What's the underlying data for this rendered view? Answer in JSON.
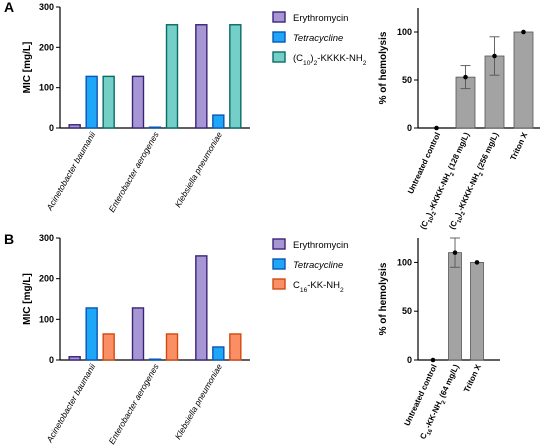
{
  "colors": {
    "erythromycin_fill": "#a796d4",
    "erythromycin_stroke": "#3b2378",
    "tetracycline_fill": "#1ea7f7",
    "tetracycline_stroke": "#0b55b8",
    "peptide_a_fill": "#73cfc8",
    "peptide_a_stroke": "#0a6b66",
    "peptide_b_fill": "#fa8f66",
    "peptide_b_stroke": "#d34a10",
    "hemolysis_bar": "#a3a3a3"
  },
  "chart_data": [
    {
      "panel": "A",
      "type": "bar",
      "title": "",
      "ylabel": "MIC [mg/L]",
      "xlabel": "",
      "ylim": [
        0,
        300
      ],
      "yticks": [
        0,
        100,
        200,
        300
      ],
      "categories": [
        "Acinetobacter baumanii",
        "Enterobacter aerogenes",
        "Klebsiella pneumoniae"
      ],
      "legend_position": "right",
      "series": [
        {
          "name": "Erythromycin",
          "values": [
            8,
            128,
            256
          ]
        },
        {
          "name": "Tetracycline",
          "values": [
            128,
            2,
            32
          ]
        },
        {
          "name": "(C10)2-KKKK-NH2",
          "values": [
            128,
            256,
            256
          ]
        }
      ]
    },
    {
      "panel": "A",
      "type": "bar",
      "title": "",
      "ylabel": "% of hemolysis",
      "xlabel": "",
      "ylim": [
        0,
        125
      ],
      "yticks": [
        0,
        50,
        100
      ],
      "categories": [
        "Untreated control",
        "(C10)2-KKKK-NH2 (128 mg/L)",
        "(C10)2-KKKK-NH2 (256 mg/L)",
        "Triton X"
      ],
      "values": [
        0,
        53,
        75,
        100
      ],
      "error_bars": [
        0,
        12,
        20,
        0
      ],
      "points": [
        0,
        53,
        75,
        100
      ]
    },
    {
      "panel": "B",
      "type": "bar",
      "title": "",
      "ylabel": "MIC [mg/L]",
      "xlabel": "",
      "ylim": [
        0,
        300
      ],
      "yticks": [
        0,
        100,
        200,
        300
      ],
      "categories": [
        "Acinetobacter baumanii",
        "Enterobacter aerogenes",
        "Klebsiella pneumoniae"
      ],
      "legend_position": "right",
      "series": [
        {
          "name": "Erythromycin",
          "values": [
            8,
            128,
            256
          ]
        },
        {
          "name": "Tetracycline",
          "values": [
            128,
            2,
            32
          ]
        },
        {
          "name": "C16-KK-NH2",
          "values": [
            64,
            64,
            64
          ]
        }
      ]
    },
    {
      "panel": "B",
      "type": "bar",
      "title": "",
      "ylabel": "% of hemolysis",
      "xlabel": "",
      "ylim": [
        0,
        125
      ],
      "yticks": [
        0,
        50,
        100
      ],
      "categories": [
        "Untreated control",
        "C16-KK-NH2 (64 mg/L)",
        "Triton X"
      ],
      "values": [
        0,
        110,
        100
      ],
      "error_bars": [
        0,
        15,
        0
      ],
      "points": [
        0,
        110,
        100
      ]
    }
  ]
}
